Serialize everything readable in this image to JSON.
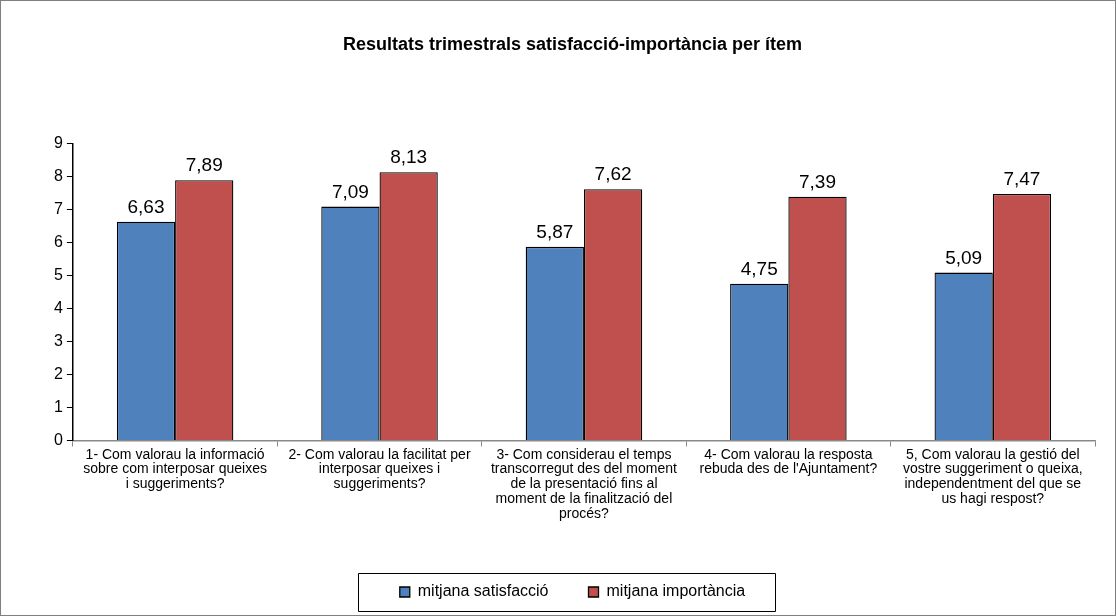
{
  "chart_data": {
    "type": "bar",
    "title": "Resultats trimestrals satisfacció-importància per ítem",
    "categories": [
      "1- Com valorau la informació sobre com interposar queixes i suggeriments?",
      "2- Com valorau la facilitat per interposar queixes i suggeriments?",
      "3- Com considerau el temps transcorregut des del moment de la presentació fins al moment de la finalització del procés?",
      "4- Com valorau la resposta rebuda des de l'Ajuntament?",
      "5, Com valorau la gestió del vostre suggeriment o queixa, independentment del que se us hagi respost?"
    ],
    "series": [
      {
        "name": "mitjana satisfacció",
        "color": "#4f81bd",
        "values": [
          6.63,
          7.09,
          5.87,
          4.75,
          5.09
        ],
        "value_labels": [
          "6,63",
          "7,09",
          "5,87",
          "4,75",
          "5,09"
        ]
      },
      {
        "name": "mitjana importància",
        "color": "#c0504d",
        "values": [
          7.89,
          8.13,
          7.62,
          7.39,
          7.47
        ],
        "value_labels": [
          "7,89",
          "8,13",
          "7,62",
          "7,39",
          "7,47"
        ]
      }
    ],
    "ylim": [
      0,
      9
    ],
    "yticks": [
      0,
      1,
      2,
      3,
      4,
      5,
      6,
      7,
      8,
      9
    ],
    "grid": false,
    "legend": "bottom"
  }
}
